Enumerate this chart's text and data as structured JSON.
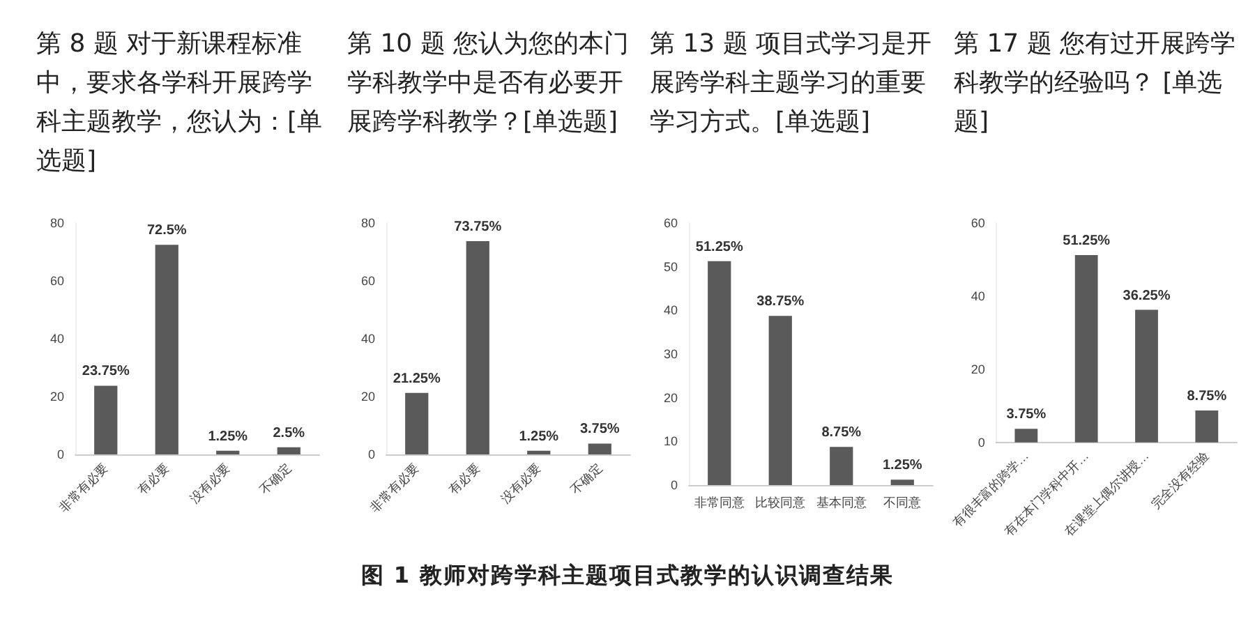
{
  "chart_data": [
    {
      "type": "bar",
      "title": "第 8 题  对于新课程标准中，要求各学科开展跨学科主题教学，您认为：[单选题]",
      "categories": [
        "非常有必要",
        "有必要",
        "没有必要",
        "不确定"
      ],
      "values": [
        23.75,
        72.5,
        1.25,
        2.5
      ],
      "value_labels": [
        "23.75%",
        "72.5%",
        "1.25%",
        "2.5%"
      ],
      "color": "#5a5a5a",
      "ylim": [
        0,
        80
      ],
      "yticks": [
        0,
        20,
        40,
        60,
        80
      ]
    },
    {
      "type": "bar",
      "title": "第 10 题  您认为您的本门学科教学中是否有必要开展跨学科教学？[单选题]",
      "categories": [
        "非常有必要",
        "有必要",
        "没有必要",
        "不确定"
      ],
      "values": [
        21.25,
        73.75,
        1.25,
        3.75
      ],
      "value_labels": [
        "21.25%",
        "73.75%",
        "1.25%",
        "3.75%"
      ],
      "color": "#5a5a5a",
      "ylim": [
        0,
        80
      ],
      "yticks": [
        0,
        20,
        40,
        60,
        80
      ]
    },
    {
      "type": "bar",
      "title": "第 13 题  项目式学习是开展跨学科主题学习的重要学习方式。[单选题]",
      "categories": [
        "非常同意",
        "比较同意",
        "基本同意",
        "不同意"
      ],
      "values": [
        51.25,
        38.75,
        8.75,
        1.25
      ],
      "value_labels": [
        "51.25%",
        "38.75%",
        "8.75%",
        "1.25%"
      ],
      "color": "#5a5a5a",
      "ylim": [
        0,
        60
      ],
      "yticks": [
        0,
        10,
        20,
        30,
        40,
        50,
        60
      ]
    },
    {
      "type": "bar",
      "title": "第 17 题  您有过开展跨学科教学的经验吗？ [单选题]",
      "categories": [
        "有很丰富的跨学…",
        "有在本门学科中开…",
        "在课堂上偶尔讲授…",
        "完全没有经验"
      ],
      "values": [
        3.75,
        51.25,
        36.25,
        8.75
      ],
      "value_labels": [
        "3.75%",
        "51.25%",
        "36.25%",
        "8.75%"
      ],
      "color": "#5a5a5a",
      "ylim": [
        0,
        60
      ],
      "yticks": [
        0,
        20,
        40,
        60
      ],
      "annotations": [
        "图 1   教师对跨学科主题项目式教学的认识调查结果"
      ]
    }
  ]
}
